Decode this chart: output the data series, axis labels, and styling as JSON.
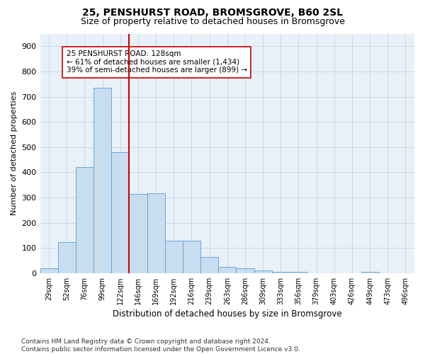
{
  "title1": "25, PENSHURST ROAD, BROMSGROVE, B60 2SL",
  "title2": "Size of property relative to detached houses in Bromsgrove",
  "xlabel": "Distribution of detached houses by size in Bromsgrove",
  "ylabel": "Number of detached properties",
  "bar_color": "#c8ddf0",
  "bar_edge_color": "#5a9fd4",
  "bar_edge_width": 0.6,
  "categories": [
    "29sqm",
    "52sqm",
    "76sqm",
    "99sqm",
    "122sqm",
    "146sqm",
    "169sqm",
    "192sqm",
    "216sqm",
    "239sqm",
    "263sqm",
    "286sqm",
    "309sqm",
    "333sqm",
    "356sqm",
    "379sqm",
    "403sqm",
    "426sqm",
    "449sqm",
    "473sqm",
    "496sqm"
  ],
  "values": [
    20,
    122,
    420,
    735,
    480,
    315,
    316,
    130,
    130,
    65,
    25,
    20,
    10,
    5,
    5,
    0,
    0,
    0,
    5,
    0,
    0
  ],
  "ylim": [
    0,
    950
  ],
  "yticks": [
    0,
    100,
    200,
    300,
    400,
    500,
    600,
    700,
    800,
    900
  ],
  "vline_x": 4.5,
  "vline_color": "#cc0000",
  "vline_lw": 1.5,
  "annotation_line1": "25 PENSHURST ROAD: 128sqm",
  "annotation_line2": "← 61% of detached houses are smaller (1,434)",
  "annotation_line3": "39% of semi-detached houses are larger (899) →",
  "annotation_box_color": "white",
  "annotation_box_edge_color": "#cc0000",
  "annotation_fontsize": 7.5,
  "footnote": "Contains HM Land Registry data © Crown copyright and database right 2024.\nContains public sector information licensed under the Open Government Licence v3.0.",
  "grid_color": "#ccd8ea",
  "background_color": "#e8f0f8",
  "title1_fontsize": 10,
  "title2_fontsize": 9,
  "xlabel_fontsize": 8.5,
  "ylabel_fontsize": 8,
  "footnote_fontsize": 6.5
}
